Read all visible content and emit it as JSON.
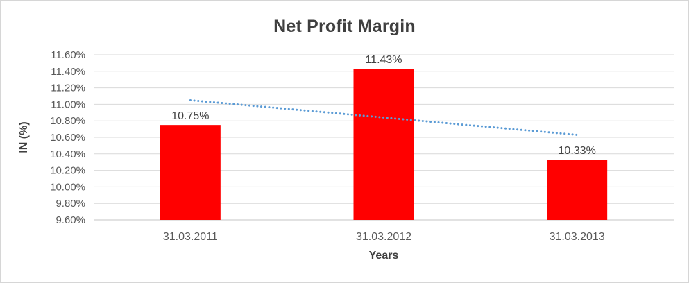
{
  "chart_data": {
    "type": "bar",
    "title": "Net Profit Margin",
    "xlabel": "Years",
    "ylabel": "IN (%)",
    "categories": [
      "31.03.2011",
      "31.03.2012",
      "31.03.2013"
    ],
    "values": [
      10.75,
      11.43,
      10.33
    ],
    "data_labels": [
      "10.75%",
      "11.43%",
      "10.33%"
    ],
    "ylim": [
      9.6,
      11.6
    ],
    "ytick_step": 0.2,
    "ytick_labels": [
      "9.60%",
      "9.80%",
      "10.00%",
      "10.20%",
      "10.40%",
      "10.60%",
      "10.80%",
      "11.00%",
      "11.20%",
      "11.40%",
      "11.60%"
    ],
    "grid": true,
    "legend_position": "none",
    "bar_color": "#ff0000",
    "grid_color": "#d9d9d9",
    "axis_line_color": "#d9d9d9",
    "tick_text_color": "#595959",
    "data_label_color": "#404040",
    "trendline": {
      "type": "linear",
      "style": "dotted",
      "color": "#5b9bd5",
      "start_value": 11.05,
      "end_value": 10.63
    }
  }
}
